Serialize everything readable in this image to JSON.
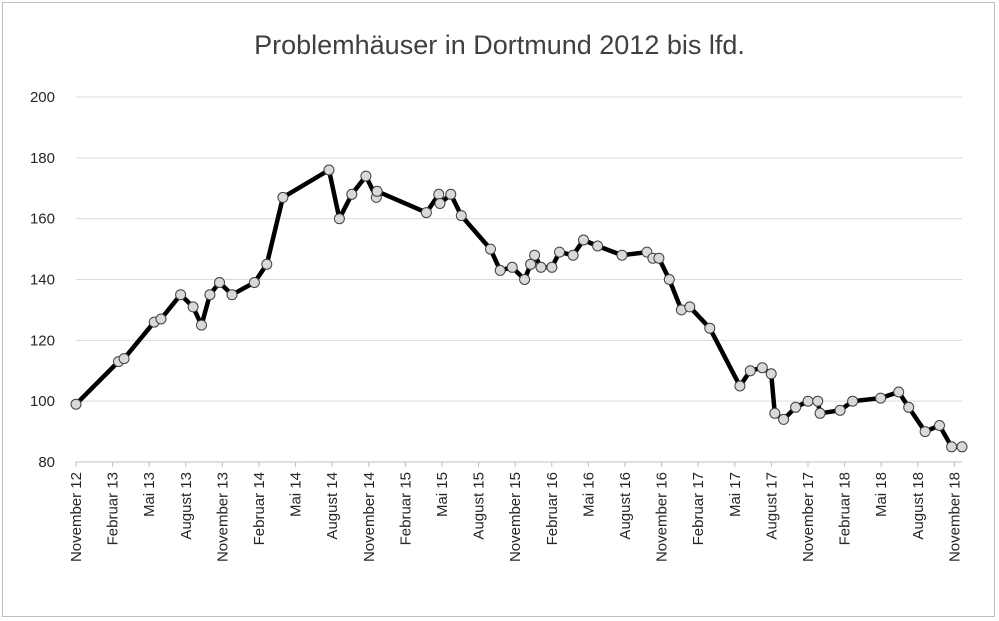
{
  "chart_data": {
    "type": "line",
    "title": "Problemhäuser in Dortmund 2012 bis lfd.",
    "xlabel": "",
    "ylabel": "",
    "ylim": [
      80,
      200
    ],
    "yticks": [
      "80",
      "100",
      "120",
      "140",
      "160",
      "180",
      "200"
    ],
    "grid": true,
    "legend": "none",
    "x_tick_labels": [
      "November 12",
      "Februar 13",
      "Mai 13",
      "August 13",
      "November 13",
      "Februar 14",
      "Mai 14",
      "August 14",
      "November 14",
      "Februar 15",
      "Mai 15",
      "August 15",
      "November 15",
      "Februar 16",
      "Mai 16",
      "August 16",
      "November 16",
      "Februar 17",
      "Mai 17",
      "August 17",
      "November 17",
      "Februar 18",
      "Mai 18",
      "August 18",
      "November 18"
    ],
    "series": [
      {
        "color": "#000000",
        "marker_fill": "#d9d9d9",
        "points": [
          {
            "x": "2012-11-01",
            "y": 99
          },
          {
            "x": "2013-02-15",
            "y": 113
          },
          {
            "x": "2013-03-01",
            "y": 114
          },
          {
            "x": "2013-05-15",
            "y": 126
          },
          {
            "x": "2013-06-01",
            "y": 127
          },
          {
            "x": "2013-07-20",
            "y": 135
          },
          {
            "x": "2013-08-20",
            "y": 131
          },
          {
            "x": "2013-09-10",
            "y": 125
          },
          {
            "x": "2013-10-01",
            "y": 135
          },
          {
            "x": "2013-10-25",
            "y": 139
          },
          {
            "x": "2013-11-25",
            "y": 135
          },
          {
            "x": "2014-01-20",
            "y": 139
          },
          {
            "x": "2014-02-20",
            "y": 145
          },
          {
            "x": "2014-04-01",
            "y": 167
          },
          {
            "x": "2014-07-25",
            "y": 176
          },
          {
            "x": "2014-08-20",
            "y": 160
          },
          {
            "x": "2014-09-20",
            "y": 168
          },
          {
            "x": "2014-10-25",
            "y": 174
          },
          {
            "x": "2014-11-20",
            "y": 167
          },
          {
            "x": "2014-11-22",
            "y": 169
          },
          {
            "x": "2015-03-25",
            "y": 162
          },
          {
            "x": "2015-04-25",
            "y": 168
          },
          {
            "x": "2015-04-28",
            "y": 165
          },
          {
            "x": "2015-05-25",
            "y": 168
          },
          {
            "x": "2015-06-20",
            "y": 161
          },
          {
            "x": "2015-09-01",
            "y": 150
          },
          {
            "x": "2015-09-25",
            "y": 143
          },
          {
            "x": "2015-10-25",
            "y": 144
          },
          {
            "x": "2015-11-25",
            "y": 140
          },
          {
            "x": "2015-12-10",
            "y": 145
          },
          {
            "x": "2015-12-20",
            "y": 148
          },
          {
            "x": "2016-01-05",
            "y": 144
          },
          {
            "x": "2016-02-01",
            "y": 144
          },
          {
            "x": "2016-02-20",
            "y": 149
          },
          {
            "x": "2016-03-25",
            "y": 148
          },
          {
            "x": "2016-04-20",
            "y": 153
          },
          {
            "x": "2016-05-25",
            "y": 151
          },
          {
            "x": "2016-07-25",
            "y": 148
          },
          {
            "x": "2016-09-25",
            "y": 149
          },
          {
            "x": "2016-10-10",
            "y": 147
          },
          {
            "x": "2016-10-25",
            "y": 147
          },
          {
            "x": "2016-11-20",
            "y": 140
          },
          {
            "x": "2016-12-20",
            "y": 130
          },
          {
            "x": "2017-01-10",
            "y": 131
          },
          {
            "x": "2017-03-01",
            "y": 124
          },
          {
            "x": "2017-05-15",
            "y": 105
          },
          {
            "x": "2017-06-10",
            "y": 110
          },
          {
            "x": "2017-07-10",
            "y": 111
          },
          {
            "x": "2017-08-01",
            "y": 109
          },
          {
            "x": "2017-08-10",
            "y": 96
          },
          {
            "x": "2017-09-01",
            "y": 94
          },
          {
            "x": "2017-10-01",
            "y": 98
          },
          {
            "x": "2017-11-01",
            "y": 100
          },
          {
            "x": "2017-11-25",
            "y": 100
          },
          {
            "x": "2017-12-01",
            "y": 96
          },
          {
            "x": "2018-01-20",
            "y": 97
          },
          {
            "x": "2018-02-20",
            "y": 100
          },
          {
            "x": "2018-05-01",
            "y": 101
          },
          {
            "x": "2018-06-15",
            "y": 103
          },
          {
            "x": "2018-07-10",
            "y": 98
          },
          {
            "x": "2018-08-20",
            "y": 90
          },
          {
            "x": "2018-09-25",
            "y": 92
          },
          {
            "x": "2018-10-25",
            "y": 85
          },
          {
            "x": "2018-11-20",
            "y": 85
          }
        ]
      }
    ]
  }
}
